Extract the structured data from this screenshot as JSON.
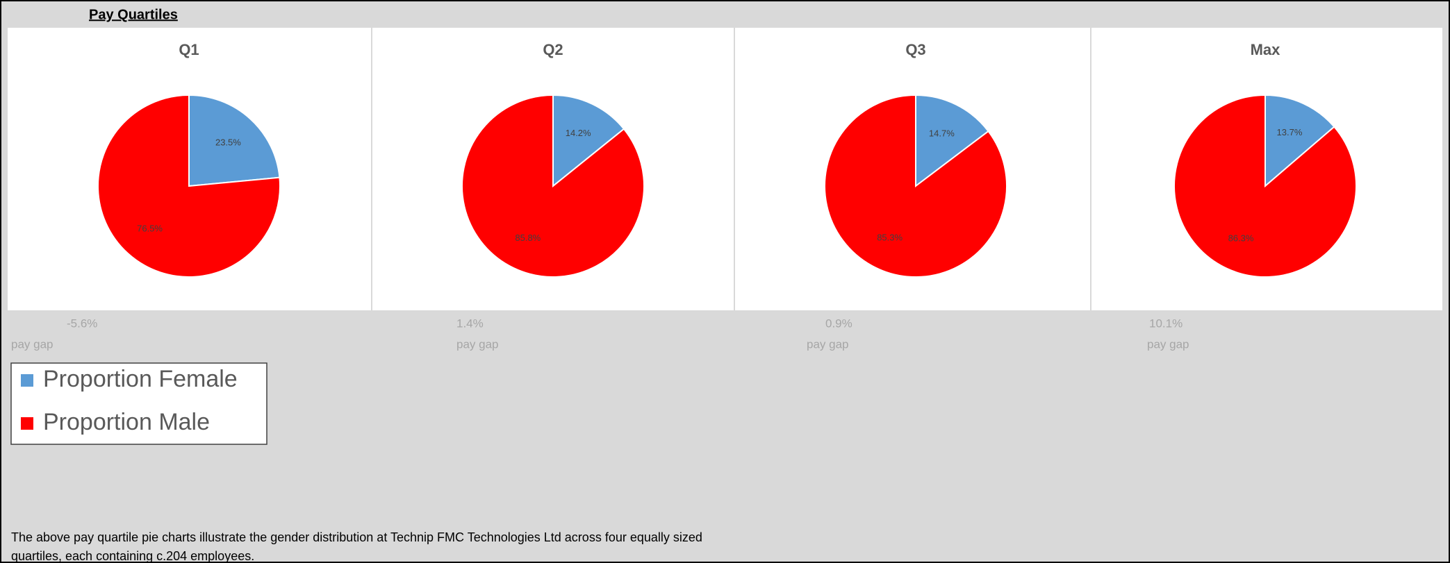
{
  "header": "Pay Quartiles",
  "footnote": [
    "The above pay quartile pie charts illustrate the gender distribution at Technip FMC Technologies Ltd across four equally sized",
    "quartiles, each containing c.204 employees."
  ],
  "chart_data": [
    {
      "type": "pie",
      "title": "Q1",
      "categories": [
        "Proportion Female",
        "Proportion Male"
      ],
      "colors": [
        "#5b9bd5",
        "#ff0000"
      ],
      "values": [
        23.5,
        76.5
      ],
      "value_labels": [
        "23.5%",
        "76.5%"
      ],
      "annotations": [
        "-5.6%",
        "pay gap"
      ],
      "legend": "left"
    },
    {
      "type": "pie",
      "title": "Q2",
      "categories": [
        "Proportion Female",
        "Proportion Male"
      ],
      "colors": [
        "#5b9bd5",
        "#ff0000"
      ],
      "values": [
        14.2,
        85.8
      ],
      "value_labels": [
        "14.2%",
        "85.8%"
      ],
      "annotations": [
        "1.4%",
        "pay gap"
      ]
    },
    {
      "type": "pie",
      "title": "Q3",
      "categories": [
        "Proportion Female",
        "Proportion Male"
      ],
      "colors": [
        "#5b9bd5",
        "#ff0000"
      ],
      "values": [
        14.7,
        85.3
      ],
      "value_labels": [
        "14.7%",
        "85.3%"
      ],
      "annotations": [
        "0.9%",
        "pay gap"
      ]
    },
    {
      "type": "pie",
      "title": "Max",
      "categories": [
        "Proportion Female",
        "Proportion Male"
      ],
      "colors": [
        "#5b9bd5",
        "#ff0000"
      ],
      "values": [
        13.7,
        86.3
      ],
      "value_labels": [
        "13.7%",
        "86.3%"
      ],
      "annotations": [
        "10.1%",
        "pay gap"
      ]
    }
  ]
}
